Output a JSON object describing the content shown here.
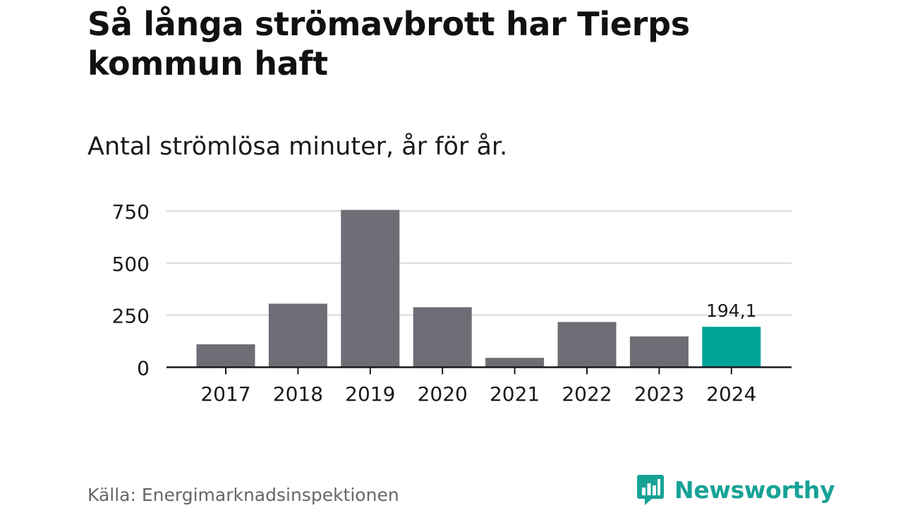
{
  "title": "Så långa strömavbrott har Tierps kommun haft",
  "subtitle": "Antal strömlösa minuter, år för år.",
  "source": "Källa: Energimarknadsinspektionen",
  "brand": {
    "name": "Newsworthy",
    "icon": "newsworthy-chart-icon",
    "color": "#17a296"
  },
  "chart_data": {
    "type": "bar",
    "categories": [
      "2017",
      "2018",
      "2019",
      "2020",
      "2021",
      "2022",
      "2023",
      "2024"
    ],
    "values": [
      110,
      305,
      755,
      288,
      45,
      217,
      148,
      194.1
    ],
    "ylim": [
      0,
      750
    ],
    "yticks": [
      "0",
      "250",
      "500",
      "750"
    ],
    "ytick_values": [
      0,
      250,
      500,
      750
    ],
    "grid": true,
    "annotation": "194,1",
    "colors": {
      "default": "#6e6d75",
      "highlight": "#00a398"
    },
    "highlight_index": 7
  }
}
